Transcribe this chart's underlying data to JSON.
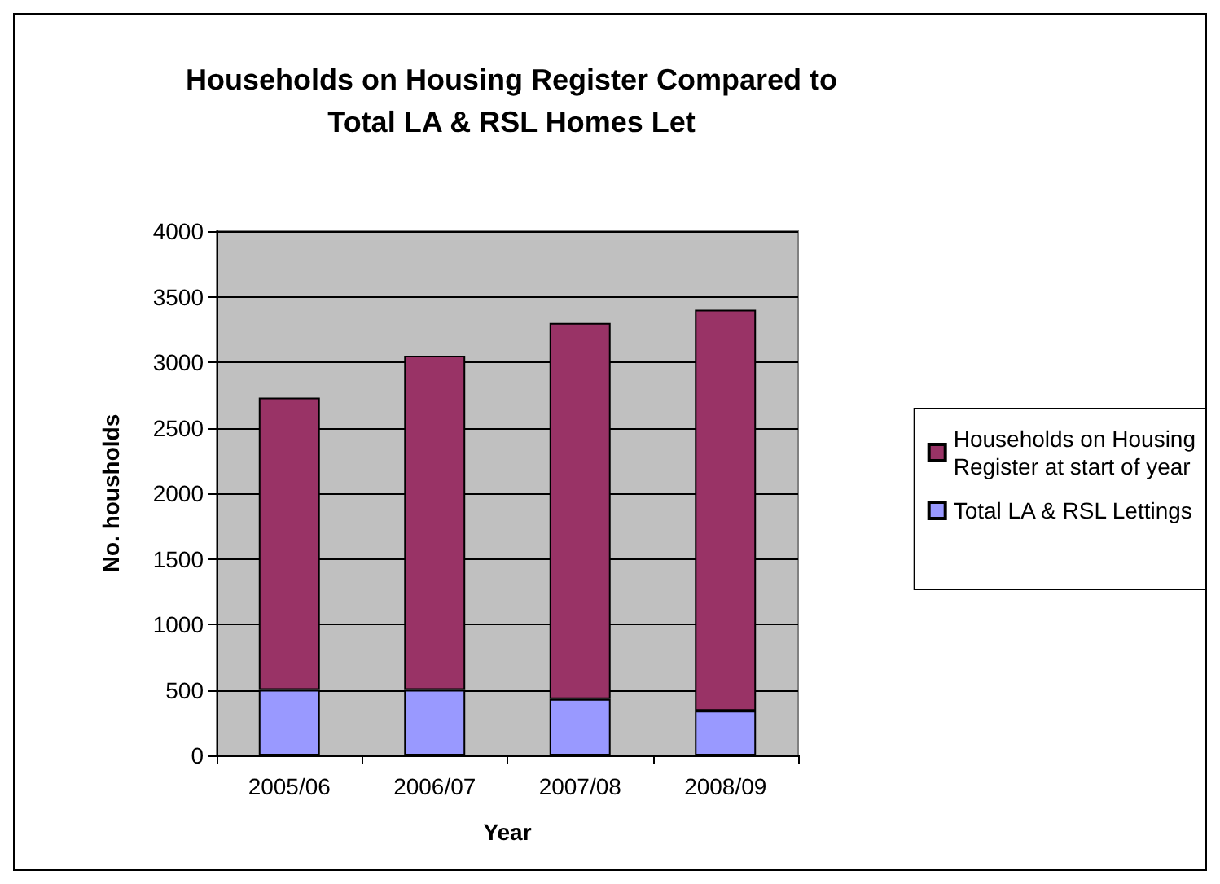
{
  "chart_data": {
    "type": "bar",
    "title": "Households on Housing Register Compared to\nTotal LA & RSL Homes Let",
    "xlabel": "Year",
    "ylabel": "No. housholds",
    "categories": [
      "2005/06",
      "2006/07",
      "2007/08",
      "2008/09"
    ],
    "stacked": true,
    "series": [
      {
        "name": "Total LA & RSL Lettings",
        "color": "#9999ff",
        "values": [
          500,
          500,
          430,
          340
        ]
      },
      {
        "name": "Households on Housing Register at start of year",
        "color": "#993366",
        "values": [
          2230,
          2550,
          2870,
          3060
        ]
      }
    ],
    "ylim": [
      0,
      4000
    ],
    "yticks": [
      0,
      500,
      1000,
      1500,
      2000,
      2500,
      3000,
      3500,
      4000
    ],
    "grid": "y",
    "legend": "right"
  }
}
